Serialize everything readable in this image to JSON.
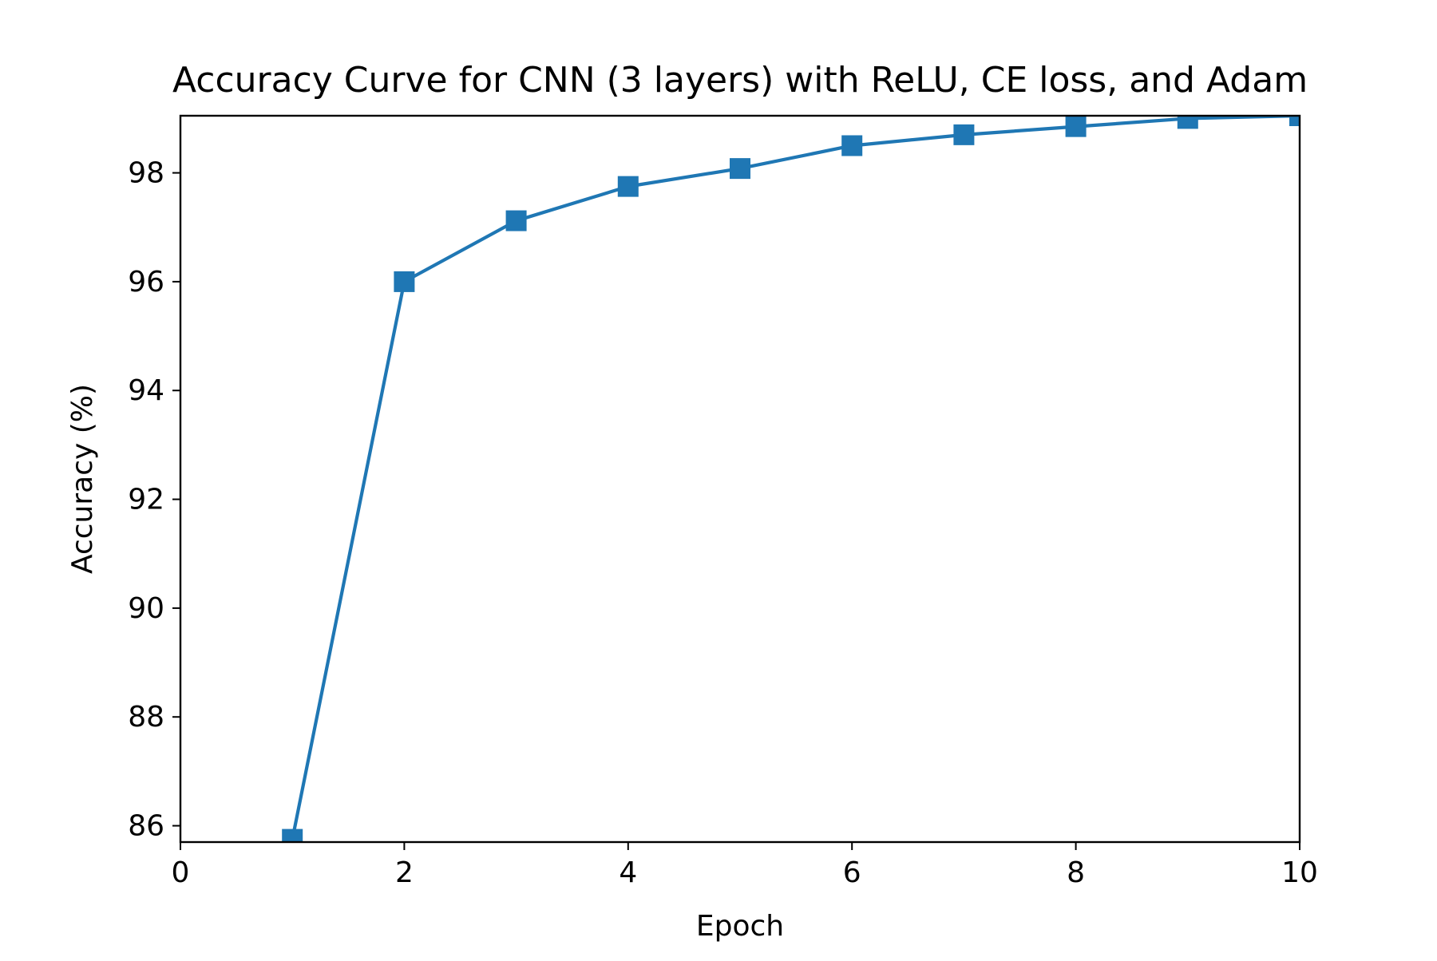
{
  "chart_data": {
    "type": "line",
    "title": "Accuracy Curve for CNN (3 layers) with ReLU, CE loss, and Adam",
    "xlabel": "Epoch",
    "ylabel": "Accuracy (%)",
    "xlim": [
      0,
      10
    ],
    "ylim": [
      85.7,
      99.05
    ],
    "x_ticks": [
      0,
      2,
      4,
      6,
      8,
      10
    ],
    "y_ticks": [
      86,
      88,
      90,
      92,
      94,
      96,
      98
    ],
    "grid": false,
    "legend": "none",
    "series": [
      {
        "x": [
          1,
          2,
          3,
          4,
          5,
          6,
          7,
          8,
          9,
          10
        ],
        "values": [
          85.75,
          96.0,
          97.12,
          97.75,
          98.08,
          98.5,
          98.7,
          98.85,
          99.0,
          99.05
        ],
        "marker": "square",
        "color": "#1f77b4"
      }
    ]
  }
}
